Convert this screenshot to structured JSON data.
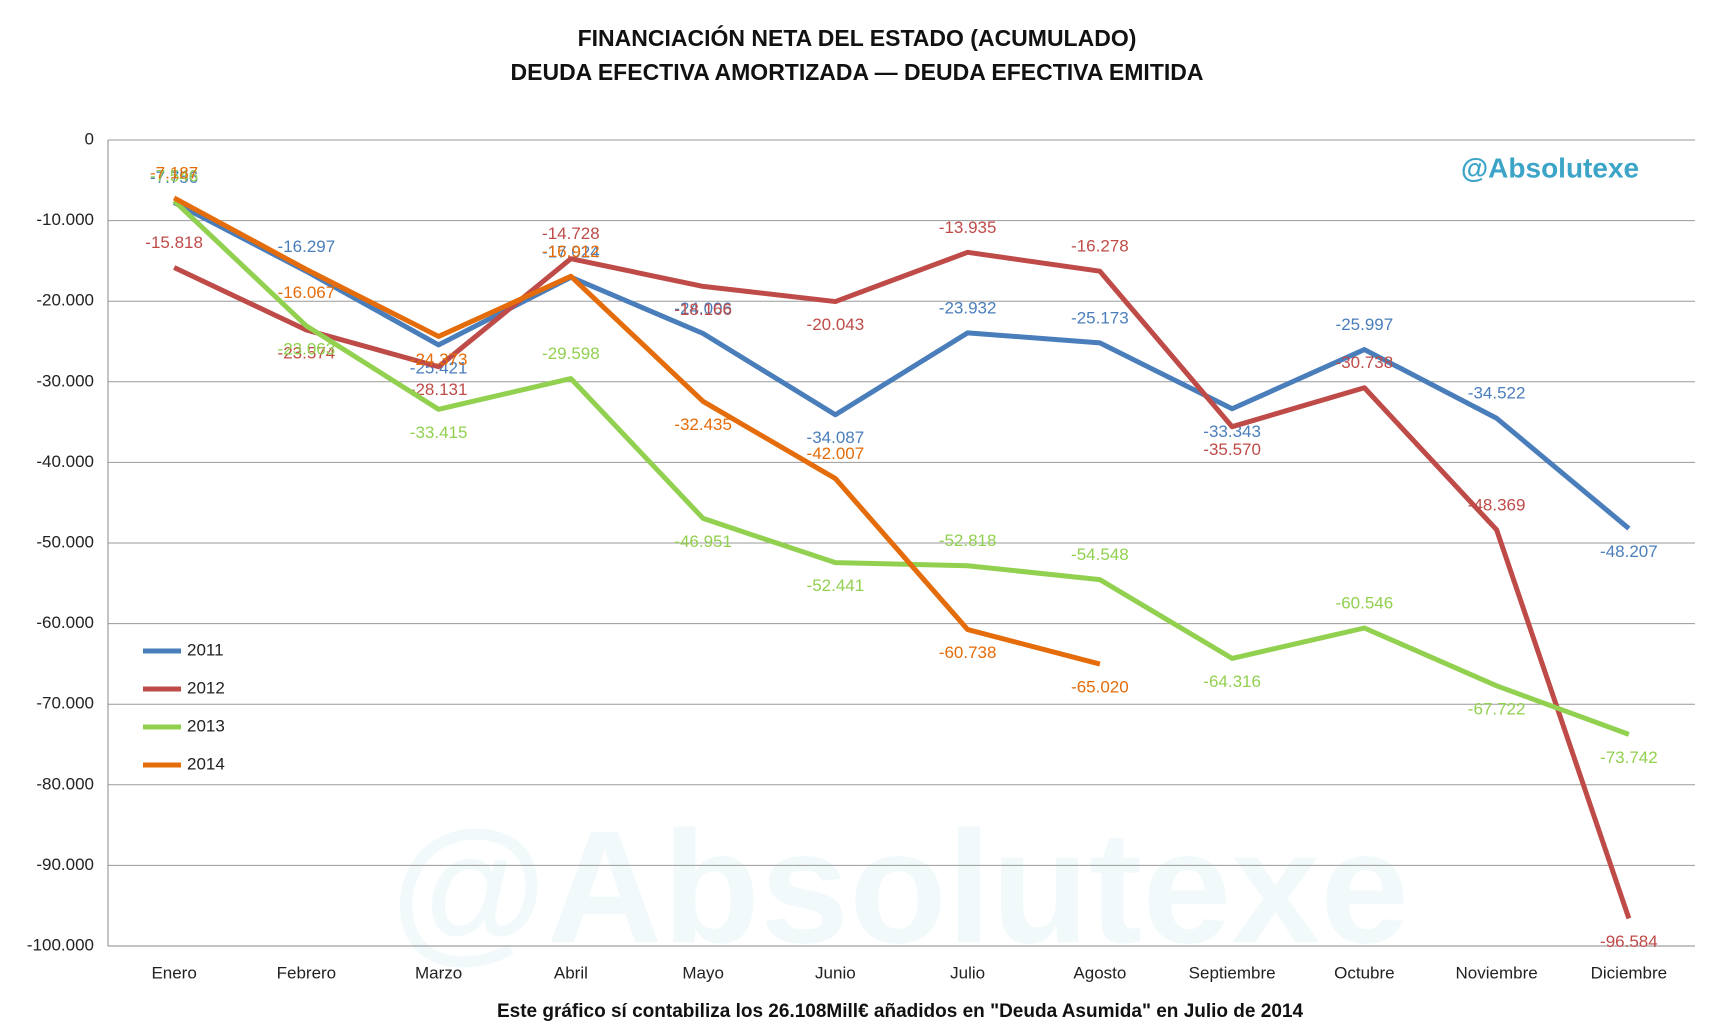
{
  "chart_data": {
    "type": "line",
    "title": "FINANCIACIÓN NETA DEL ESTADO (ACUMULADO)",
    "subtitle": "DEUDA EFECTIVA AMORTIZADA — DEUDA EFECTIVA EMITIDA",
    "caption": "Este gráfico sí contabiliza los 26.108Mill€ añadidos  en \"Deuda Asumida\"  en Julio de 2014",
    "brand": "@Absolutexe",
    "categories": [
      "Enero",
      "Febrero",
      "Marzo",
      "Abril",
      "Mayo",
      "Junio",
      "Julio",
      "Agosto",
      "Septiembre",
      "Octubre",
      "Noviembre",
      "Diciembre"
    ],
    "series": [
      {
        "name": "2011",
        "color": "#4a7ebb",
        "values": [
          -7756,
          -16297,
          -25421,
          -17024,
          -24006,
          -34087,
          -23932,
          -25173,
          -33343,
          -25997,
          -34522,
          -48207
        ],
        "value_labels": [
          "-7.756",
          "-16.297",
          "-25.421",
          "-17.024",
          "-24.006",
          "-34.087",
          "-23.932",
          "-25.173",
          "-33.343",
          "-25.997",
          "-34.522",
          "-48.207"
        ]
      },
      {
        "name": "2012",
        "color": "#be4b48",
        "values": [
          -15818,
          -23574,
          -28131,
          -14728,
          -18166,
          -20043,
          -13935,
          -16278,
          -35570,
          -30738,
          -48369,
          -96584
        ],
        "value_labels": [
          "-15.818",
          "-23.574",
          "-28.131",
          "-14.728",
          "-18.166",
          "-20.043",
          "-13.935",
          "-16.278",
          "-35.570",
          "-30.738",
          "-48.369",
          "-96.584"
        ]
      },
      {
        "name": "2013",
        "color": "#92d050",
        "values": [
          -7546,
          -23063,
          -33415,
          -29598,
          -46951,
          -52441,
          -52818,
          -54548,
          -64316,
          -60546,
          -67722,
          -73742
        ],
        "value_labels": [
          "-7.546",
          "-23.063",
          "-33.415",
          "-29.598",
          "-46.951",
          "-52.441",
          "-52.818",
          "-54.548",
          "-64.316",
          "-60.546",
          "-67.722",
          "-73.742"
        ]
      },
      {
        "name": "2014",
        "color": "#e46c0a",
        "values": [
          -7187,
          -16067,
          -24373,
          -16912,
          -32435,
          -42007,
          -60738,
          -65020,
          null,
          null,
          null,
          null
        ],
        "value_labels": [
          "-7.187",
          "-16.067",
          "-24.373",
          "-16.912",
          "-32.435",
          "-42.007",
          "-60.738",
          "-65.020",
          null,
          null,
          null,
          null
        ]
      }
    ],
    "ylim": [
      -100000,
      0
    ],
    "yticks": [
      0,
      {
        "value": -10000,
        "label": "-10.000"
      },
      {
        "value": -20000,
        "label": "-20.000"
      },
      {
        "value": -30000,
        "label": "-30.000"
      },
      {
        "value": -40000,
        "label": "-40.000"
      },
      {
        "value": -50000,
        "label": "-50.000"
      },
      {
        "value": -60000,
        "label": "-60.000"
      },
      {
        "value": -70000,
        "label": "-70.000"
      },
      {
        "value": -80000,
        "label": "-80.000"
      },
      {
        "value": -90000,
        "label": "-90.000"
      },
      {
        "value": -100000,
        "label": "-100.000"
      }
    ],
    "grid": true,
    "legend": "left"
  }
}
